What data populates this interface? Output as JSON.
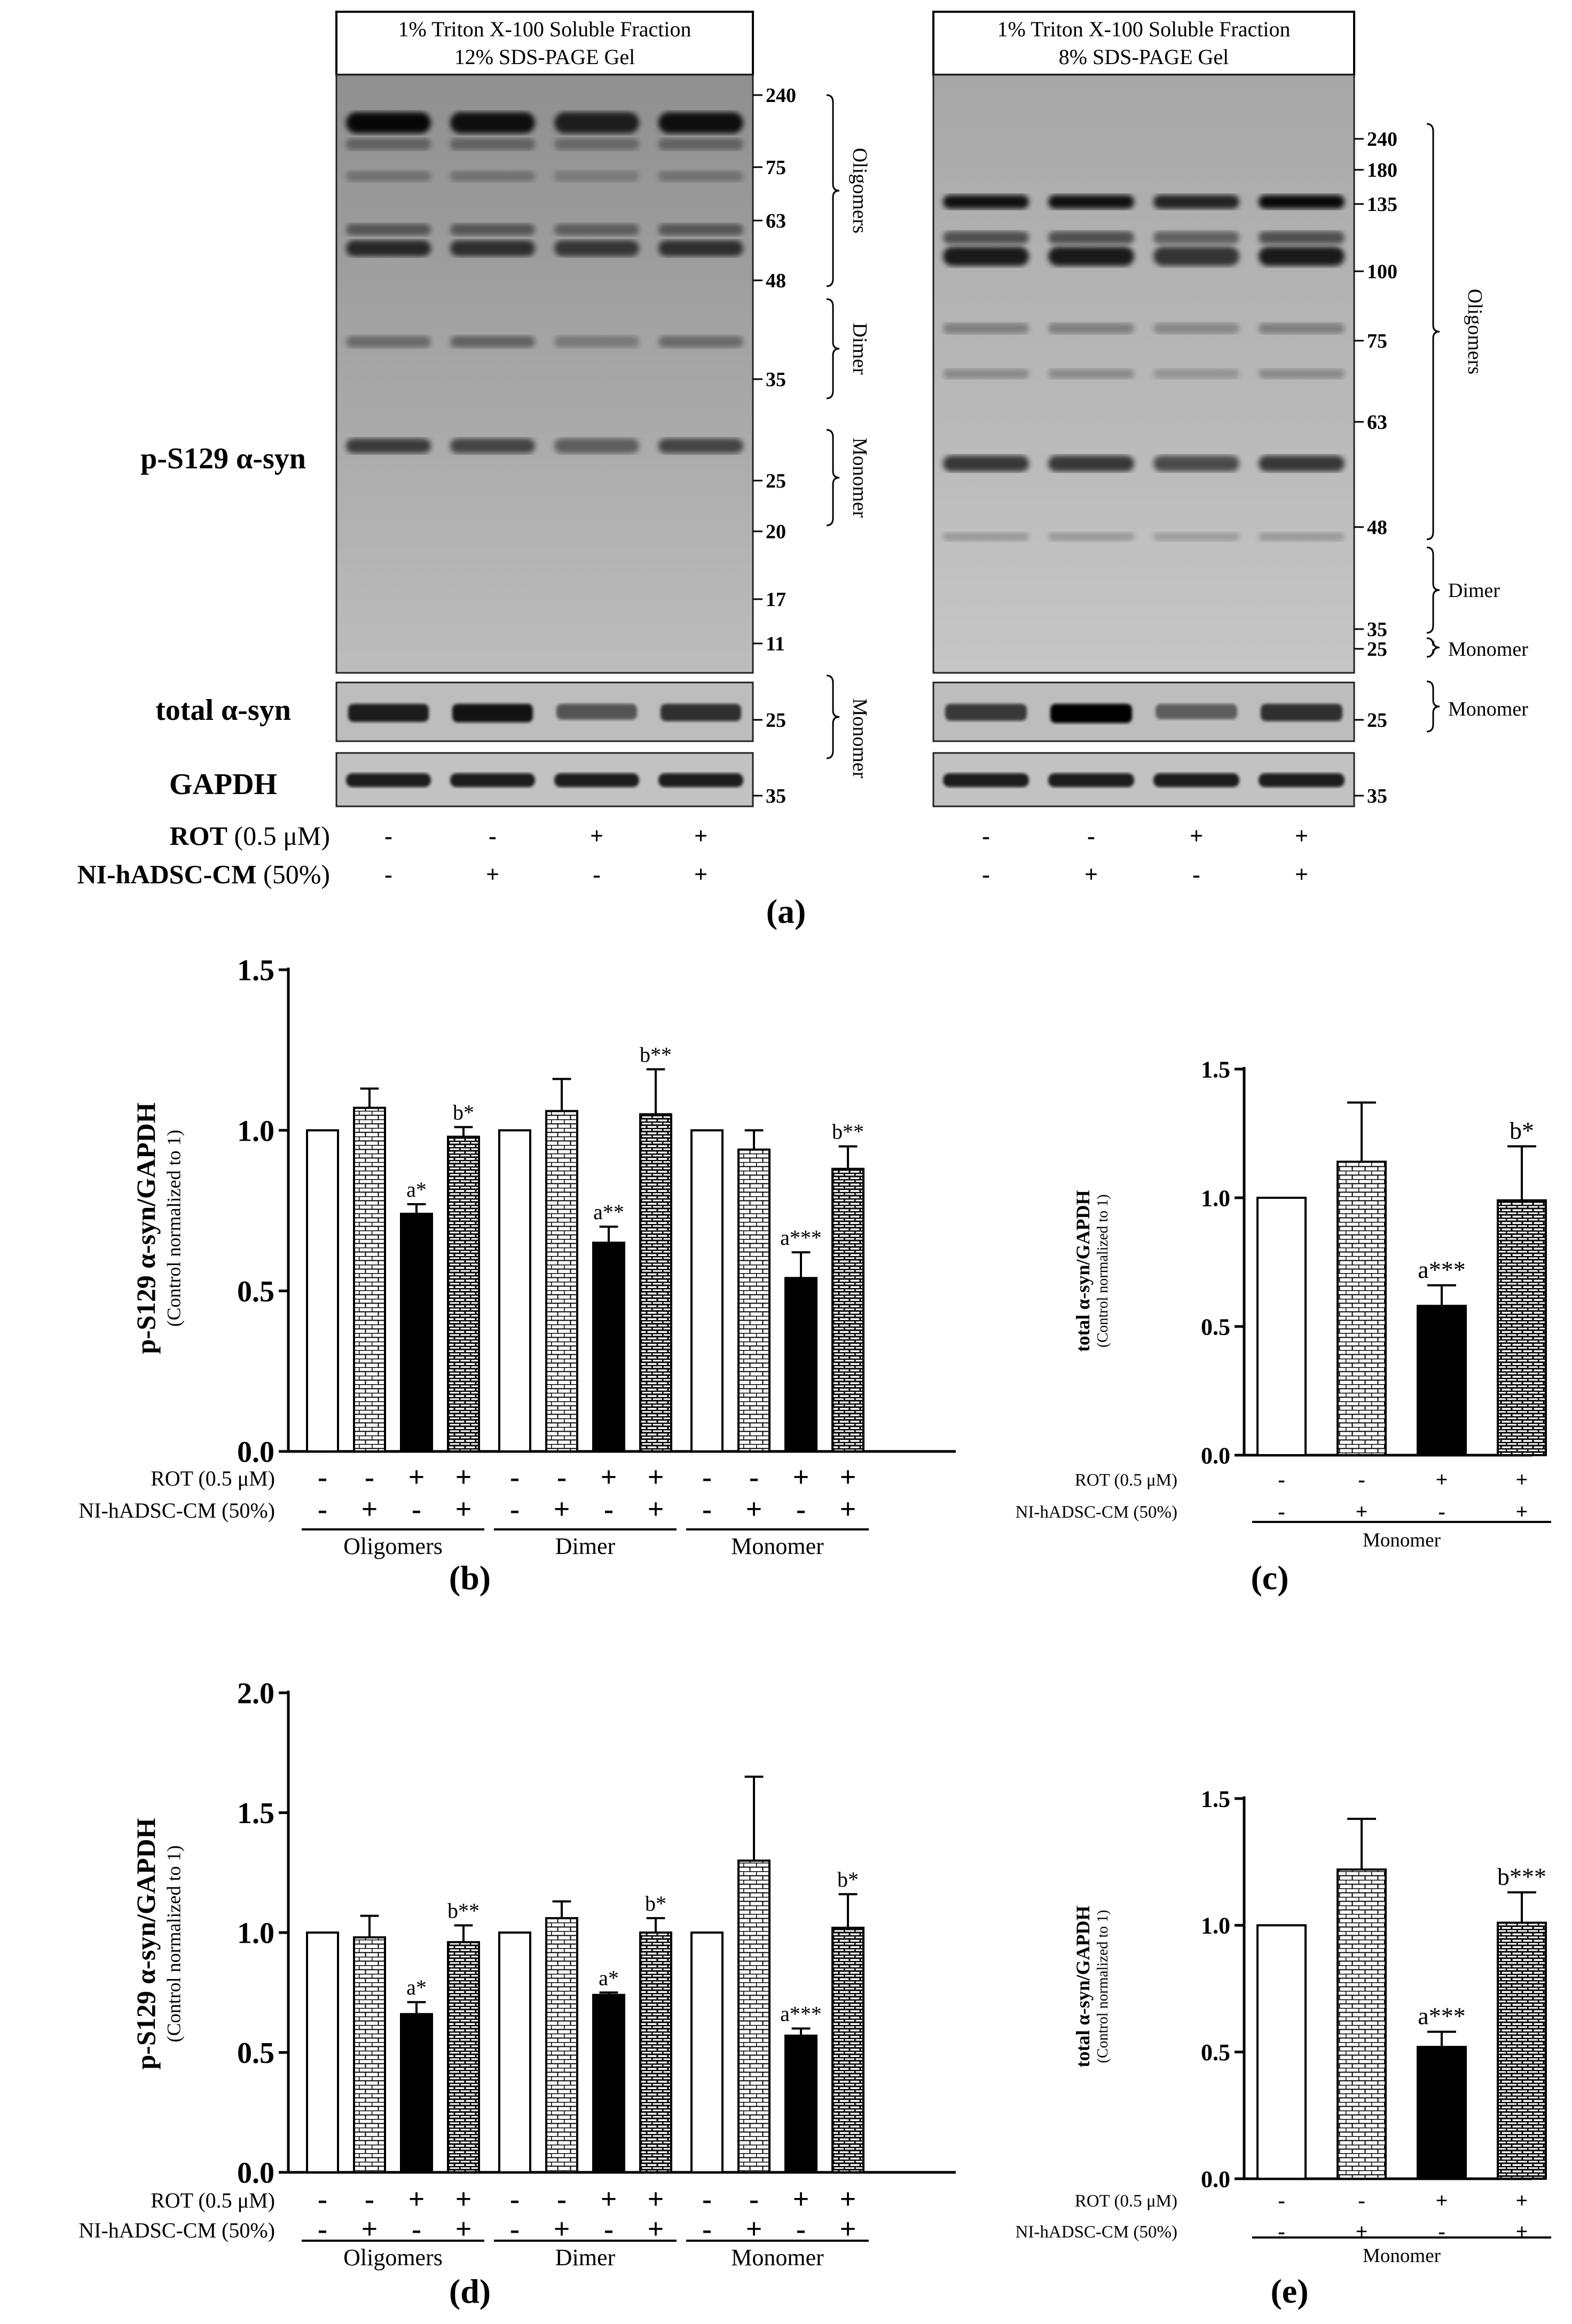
{
  "panel_a": {
    "caption": "(a)",
    "left_blot": {
      "header": [
        "1% Triton X-100 Soluble Fraction",
        "12% SDS-PAGE Gel"
      ],
      "markers": [
        "240",
        "75",
        "63",
        "48",
        "35",
        "25",
        "20",
        "17",
        "11"
      ],
      "brackets": [
        "Oligomers",
        "Dimer",
        "Monomer"
      ],
      "total_marker": "25",
      "total_bracket": "Monomer",
      "gapdh_marker": "35"
    },
    "right_blot": {
      "header": [
        "1% Triton X-100 Soluble Fraction",
        "8% SDS-PAGE Gel"
      ],
      "markers": [
        "240",
        "180",
        "135",
        "100",
        "75",
        "63",
        "48",
        "35",
        "25"
      ],
      "brackets": [
        "Oligomers",
        "Dimer",
        "Monomer"
      ],
      "total_marker": "25",
      "total_bracket": "Monomer",
      "gapdh_marker": "35"
    },
    "row_labels": {
      "p_s129": "p-S129 α-syn",
      "total": "total α-syn",
      "gapdh": "GAPDH",
      "rot_bold": "ROT",
      "rot_conc": " (0.5 μM)",
      "cm_bold": "NI-hADSC-CM",
      "cm_conc": " (50%)"
    },
    "rot_signs": [
      "-",
      "-",
      "+",
      "+"
    ],
    "cm_signs": [
      "-",
      "+",
      "-",
      "+"
    ]
  },
  "chart_data": [
    {
      "panel": "(b)",
      "type": "bar",
      "ylabel": "p-S129 α-syn/GAPDH",
      "ylabel_sub": "(Control normalized to 1)",
      "ylim": [
        0,
        1.5
      ],
      "yticks": [
        "0.0",
        "0.5",
        "1.0",
        "1.5"
      ],
      "groups": [
        "Oligomers",
        "Dimer",
        "Monomer"
      ],
      "row_labels": [
        "ROT (0.5 μM)",
        "NI-hADSC-CM (50%)"
      ],
      "rot_signs": [
        "-",
        "-",
        "+",
        "+"
      ],
      "cm_signs": [
        "-",
        "+",
        "-",
        "+"
      ],
      "values": [
        [
          1.0,
          1.07,
          0.74,
          0.98
        ],
        [
          1.0,
          1.06,
          0.65,
          1.05
        ],
        [
          1.0,
          0.94,
          0.54,
          0.88
        ]
      ],
      "errors": [
        [
          0,
          0.06,
          0.03,
          0.03
        ],
        [
          0,
          0.1,
          0.05,
          0.14
        ],
        [
          0,
          0.06,
          0.08,
          0.07
        ]
      ],
      "annotations": [
        [
          "",
          "",
          "a*",
          "b*"
        ],
        [
          "",
          "",
          "a**",
          "b**"
        ],
        [
          "",
          "",
          "a***",
          "b**"
        ]
      ],
      "colors": {
        "control": "#ffffff",
        "cm": "pattern",
        "rot": "#000000",
        "rot_cm": "pattern"
      }
    },
    {
      "panel": "(c)",
      "type": "bar",
      "ylabel": "total α-syn/GAPDH",
      "ylabel_sub": "(Control normalized to 1)",
      "ylim": [
        0,
        1.5
      ],
      "yticks": [
        "0.0",
        "0.5",
        "1.0",
        "1.5"
      ],
      "groups": [
        "Monomer"
      ],
      "row_labels": [
        "ROT (0.5 μM)",
        "NI-hADSC-CM (50%)"
      ],
      "rot_signs": [
        "-",
        "-",
        "+",
        "+"
      ],
      "cm_signs": [
        "-",
        "+",
        "-",
        "+"
      ],
      "values": [
        [
          1.0,
          1.14,
          0.58,
          0.99
        ]
      ],
      "errors": [
        [
          0,
          0.23,
          0.08,
          0.21
        ]
      ],
      "annotations": [
        [
          "",
          "",
          "a***",
          "b*"
        ]
      ]
    },
    {
      "panel": "(d)",
      "type": "bar",
      "ylabel": "p-S129 α-syn/GAPDH",
      "ylabel_sub": "(Control normalized to 1)",
      "ylim": [
        0,
        2.0
      ],
      "yticks": [
        "0.0",
        "0.5",
        "1.0",
        "1.5",
        "2.0"
      ],
      "groups": [
        "Oligomers",
        "Dimer",
        "Monomer"
      ],
      "row_labels": [
        "ROT (0.5 μM)",
        "NI-hADSC-CM (50%)"
      ],
      "rot_signs": [
        "-",
        "-",
        "+",
        "+"
      ],
      "cm_signs": [
        "-",
        "+",
        "-",
        "+"
      ],
      "values": [
        [
          1.0,
          0.98,
          0.66,
          0.96
        ],
        [
          1.0,
          1.06,
          0.74,
          1.0
        ],
        [
          1.0,
          1.3,
          0.57,
          1.02
        ]
      ],
      "errors": [
        [
          0,
          0.09,
          0.05,
          0.07
        ],
        [
          0,
          0.07,
          0.01,
          0.06
        ],
        [
          0,
          0.35,
          0.03,
          0.14
        ]
      ],
      "annotations": [
        [
          "",
          "",
          "a*",
          "b**"
        ],
        [
          "",
          "",
          "a*",
          "b*"
        ],
        [
          "",
          "",
          "a***",
          "b*"
        ]
      ]
    },
    {
      "panel": "(e)",
      "type": "bar",
      "ylabel": "total α-syn/GAPDH",
      "ylabel_sub": "(Control normalized to 1)",
      "ylim": [
        0,
        1.5
      ],
      "yticks": [
        "0.0",
        "0.5",
        "1.0",
        "1.5"
      ],
      "groups": [
        "Monomer"
      ],
      "row_labels": [
        "ROT (0.5 μM)",
        "NI-hADSC-CM (50%)"
      ],
      "rot_signs": [
        "-",
        "-",
        "+",
        "+"
      ],
      "cm_signs": [
        "-",
        "+",
        "-",
        "+"
      ],
      "values": [
        [
          1.0,
          1.22,
          0.52,
          1.01
        ]
      ],
      "errors": [
        [
          0,
          0.2,
          0.06,
          0.12
        ]
      ],
      "annotations": [
        [
          "",
          "",
          "a***",
          "b***"
        ]
      ]
    }
  ]
}
